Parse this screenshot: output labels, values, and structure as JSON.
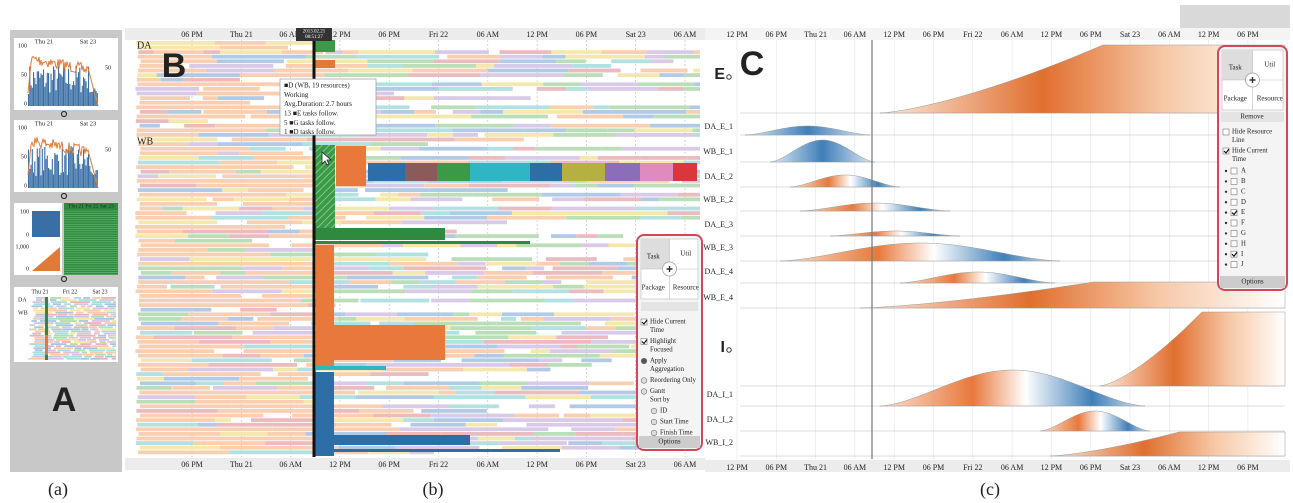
{
  "panel_a": {
    "letter": "A",
    "caption": "(a)",
    "thumbs": [
      {
        "dates": [
          "Thu 21",
          "Sat 23"
        ],
        "left_ticks": [
          100,
          50,
          0
        ],
        "right_ticks": [
          50
        ]
      },
      {
        "dates": [
          "Thu 21",
          "Sat 23"
        ],
        "left_ticks": [
          100,
          50,
          0
        ],
        "right_ticks": [
          50
        ]
      }
    ],
    "overview": {
      "top_ticks": [
        100,
        0
      ],
      "bottom_ticks": [
        "1,000",
        0
      ],
      "dates": "Thu 21 Fri 22 Sat 23"
    },
    "gantt_thumb": {
      "dates": [
        "Thu 21",
        "Fri 22",
        "Sat 23"
      ],
      "rows": [
        "DA",
        "WB"
      ]
    }
  },
  "panel_b": {
    "letter": "B",
    "caption": "(b)",
    "top_axis": [
      "06 PM",
      "Thu 21",
      "06 AM",
      "12 PM",
      "06 PM",
      "Fri 22",
      "06 AM",
      "12 PM",
      "06 PM",
      "Sat 23",
      "06 AM"
    ],
    "bottom_axis": [
      "06 PM",
      "Thu 21",
      "06 AM",
      "12 PM",
      "06 PM",
      "Fri 22",
      "06 AM",
      "12 PM",
      "06 PM",
      "Sat 23",
      "06 AM"
    ],
    "groups": [
      "DA",
      "WB"
    ],
    "current_time": [
      "2013.02.21",
      "08:51:27"
    ],
    "tooltip": [
      "■D (WB, 19 resources)",
      "Working",
      "Avg.Duration: 2.7 hours",
      "13 ■E tasks follow.",
      "5 ■G tasks follow.",
      "1 ■D tasks follow."
    ],
    "options": {
      "quadrants": [
        "Task",
        "Util",
        "Package",
        "Resource"
      ],
      "items": [
        {
          "lines": [
            "Hide Current",
            "Time"
          ],
          "kind": "checkbox",
          "checked": true
        },
        {
          "lines": [
            "Highlight",
            "Focused"
          ],
          "kind": "checkbox",
          "checked": true
        },
        {
          "lines": [
            "Apply",
            "Aggregation"
          ],
          "kind": "radio",
          "checked": true
        },
        {
          "lines": [
            "Reordering Only"
          ],
          "kind": "radio",
          "checked": false
        },
        {
          "lines": [
            "Gantt",
            "Sort by"
          ],
          "kind": "radio",
          "checked": false
        },
        {
          "lines": [
            "ID"
          ],
          "kind": "radio",
          "checked": false,
          "indent": true
        },
        {
          "lines": [
            "Start Time"
          ],
          "kind": "radio",
          "checked": false,
          "indent": true
        },
        {
          "lines": [
            "Finish Time"
          ],
          "kind": "radio",
          "checked": false,
          "indent": true
        }
      ],
      "button": "Options"
    }
  },
  "panel_c": {
    "letter": "C",
    "caption": "(c)",
    "top_axis": [
      "12 PM",
      "06 PM",
      "Thu 21",
      "06 AM",
      "12 PM",
      "06 PM",
      "Fri 22",
      "06 AM",
      "12 PM",
      "06 PM",
      "Sat 23",
      "06 AM",
      "12 PM",
      "06 PM"
    ],
    "bottom_axis": [
      "12 PM",
      "06 PM",
      "Thu 21",
      "06 AM",
      "12 PM",
      "06 PM",
      "Fri 22",
      "06 AM",
      "12 PM",
      "06 PM",
      "Sat 23",
      "06 AM",
      "12 PM",
      "06 PM"
    ],
    "rows": [
      "E",
      "DA_E_1",
      "WB_E_1",
      "DA_E_2",
      "WB_E_2",
      "DA_E_3",
      "WB_E_3",
      "DA_E_4",
      "WB_E_4",
      "I",
      "DA_I_1",
      "DA_I_2",
      "WB_I_2"
    ],
    "options": {
      "quadrants": [
        "Task",
        "Util",
        "Package",
        "Resource"
      ],
      "remove": "Remove",
      "items": [
        {
          "lines": [
            "Hide Resource",
            "Line"
          ],
          "checked": false
        },
        {
          "lines": [
            "Hide Current",
            "Time"
          ],
          "checked": true
        }
      ],
      "types": [
        {
          "label": "A",
          "checked": false
        },
        {
          "label": "B",
          "checked": false
        },
        {
          "label": "C",
          "checked": false
        },
        {
          "label": "D",
          "checked": false
        },
        {
          "label": "E",
          "checked": true
        },
        {
          "label": "F",
          "checked": false
        },
        {
          "label": "G",
          "checked": false
        },
        {
          "label": "H",
          "checked": false
        },
        {
          "label": "I",
          "checked": true
        },
        {
          "label": "J",
          "checked": false
        }
      ],
      "button": "Options"
    }
  }
}
